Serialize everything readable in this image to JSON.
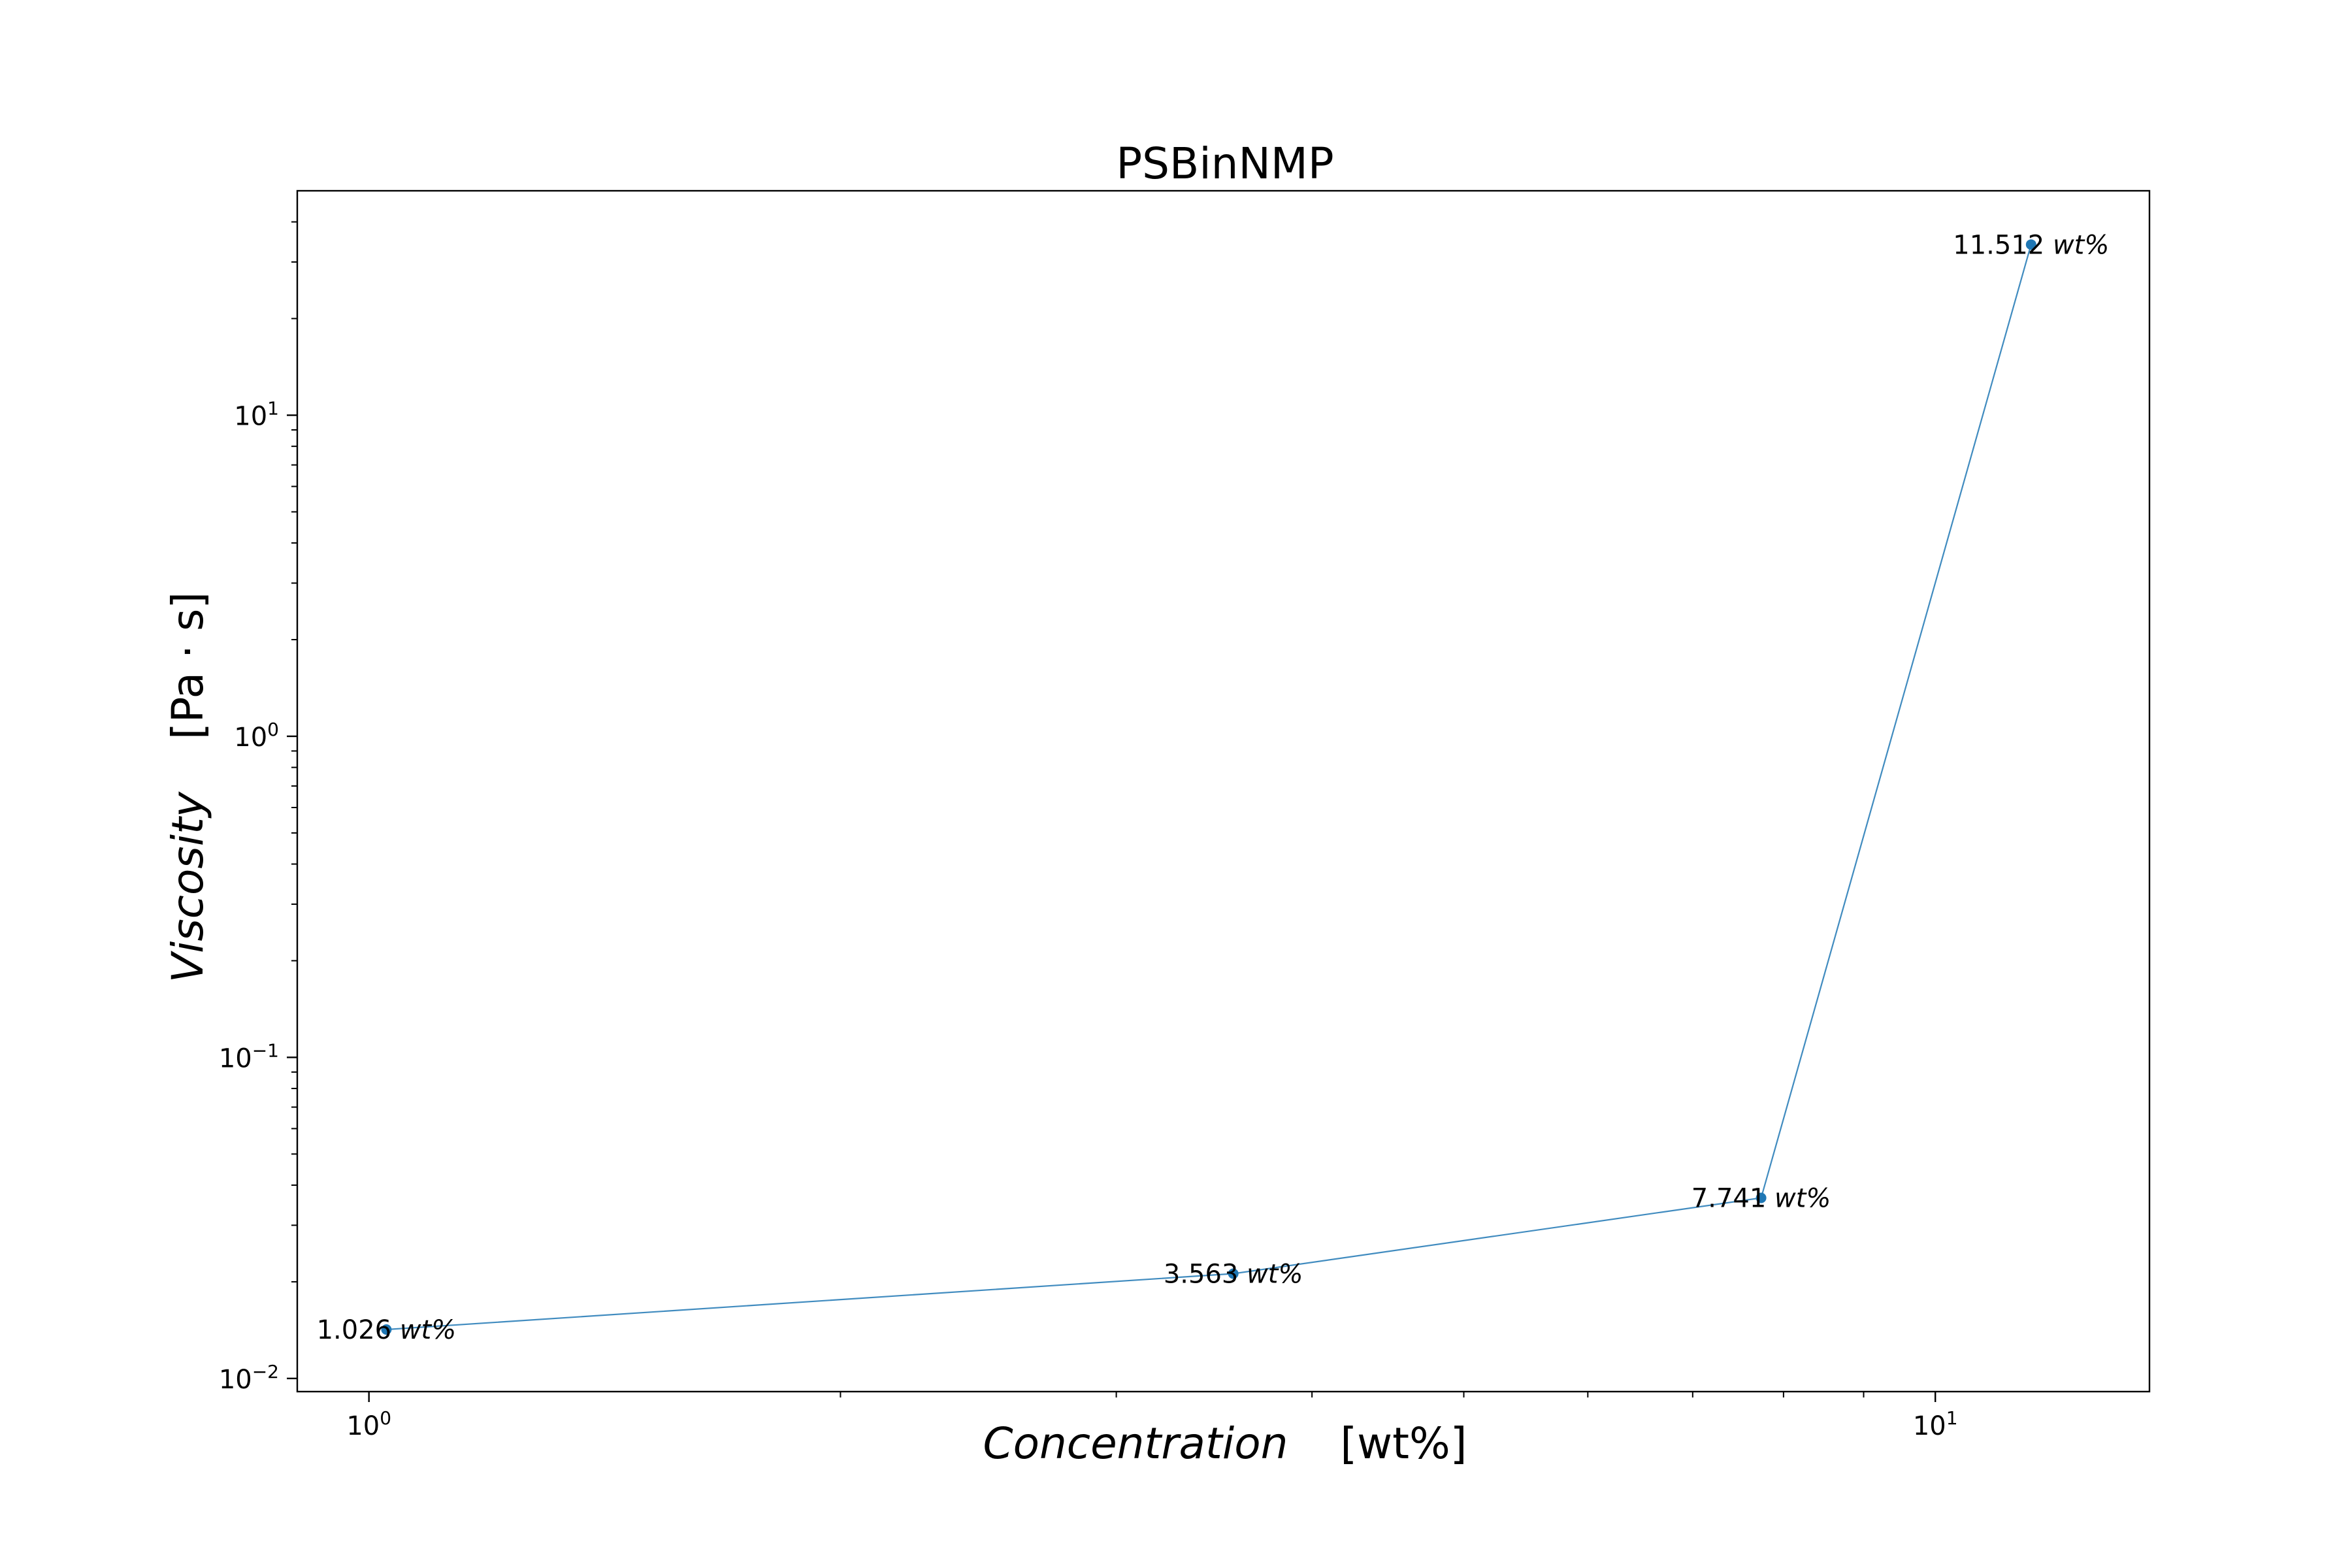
{
  "chart_data": {
    "type": "line",
    "title": "PSBinNMP",
    "xlabel": "Concentration",
    "xlabel_unit": "[wt%]",
    "ylabel": "Viscosity",
    "ylabel_unit": "[Pa · s]",
    "x_scale": "log",
    "y_scale": "log",
    "xlim": [
      0.9,
      13.7
    ],
    "ylim": [
      0.0091,
      50
    ],
    "grid": false,
    "x_ticks": [
      {
        "value": 1,
        "label": "10",
        "exp": "0"
      },
      {
        "value": 10,
        "label": "10",
        "exp": "1"
      }
    ],
    "y_ticks": [
      {
        "value": 0.01,
        "label": "10",
        "exp": "−2"
      },
      {
        "value": 0.1,
        "label": "10",
        "exp": "−1"
      },
      {
        "value": 1,
        "label": "10",
        "exp": "0"
      },
      {
        "value": 10,
        "label": "10",
        "exp": "1"
      }
    ],
    "series": [
      {
        "color": "#1f77b4",
        "x": [
          1.026,
          3.563,
          7.741,
          11.512
        ],
        "y": [
          0.0142,
          0.0212,
          0.0365,
          34.0
        ],
        "point_labels": [
          {
            "value": "1.026",
            "unit": "wt%"
          },
          {
            "value": "3.563",
            "unit": "wt%"
          },
          {
            "value": "7.741",
            "unit": "wt%"
          },
          {
            "value": "11.512",
            "unit": "wt%"
          }
        ]
      }
    ]
  }
}
